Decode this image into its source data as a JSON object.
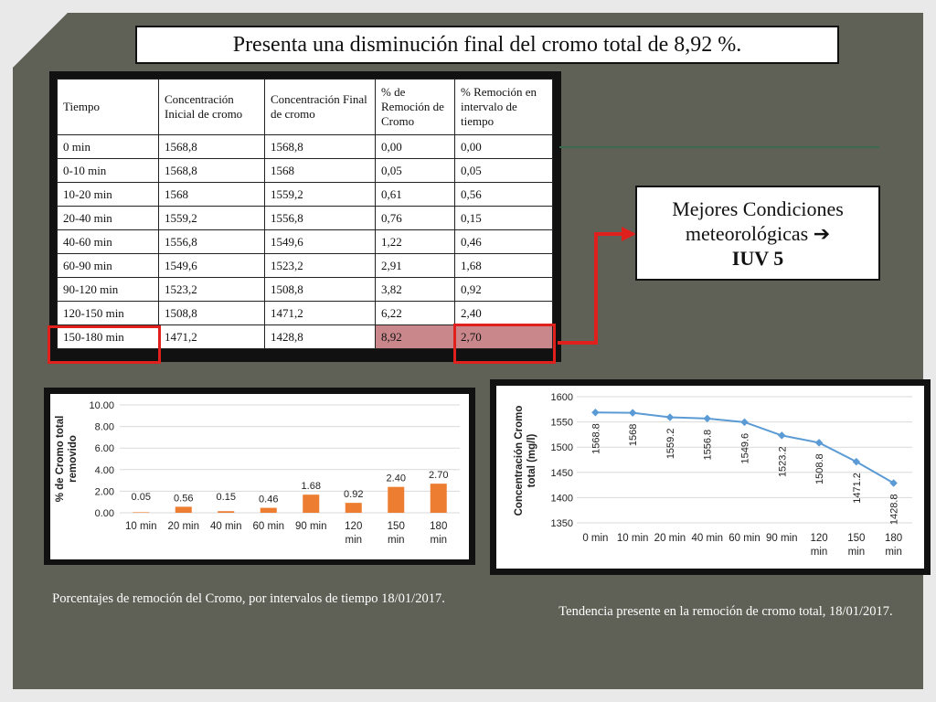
{
  "title": "Presenta una disminución final del cromo total de 8,92 %.",
  "table": {
    "headers": [
      "Tiempo",
      "Concentración Inicial de cromo",
      "Concentración Final de cromo",
      "% de Remoción de Cromo",
      "% Remoción en intervalo de tiempo"
    ],
    "rows": [
      [
        "0 min",
        "1568,8",
        "1568,8",
        "0,00",
        "0,00"
      ],
      [
        "0-10 min",
        "1568,8",
        "1568",
        "0,05",
        "0,05"
      ],
      [
        "10-20 min",
        "1568",
        "1559,2",
        "0,61",
        "0,56"
      ],
      [
        "20-40 min",
        "1559,2",
        "1556,8",
        "0,76",
        "0,15"
      ],
      [
        "40-60 min",
        "1556,8",
        "1549,6",
        "1,22",
        "0,46"
      ],
      [
        "60-90 min",
        "1549,6",
        "1523,2",
        "2,91",
        "1,68"
      ],
      [
        "90-120 min",
        "1523,2",
        "1508,8",
        "3,82",
        "0,92"
      ],
      [
        "120-150 min",
        "1508,8",
        "1471,2",
        "6,22",
        "2,40"
      ],
      [
        "150-180 min",
        "1471,2",
        "1428,8",
        "8,92",
        "2,70"
      ]
    ]
  },
  "conditions": {
    "line1": "Mejores Condiciones",
    "line2": "meteorológicas ➔",
    "line3": "IUV 5"
  },
  "captions": {
    "bar": "Porcentajes de remoción del Cromo, por intervalos de tiempo 18/01/2017.",
    "line": "Tendencia presente en la remoción de cromo total, 18/01/2017."
  },
  "colors": {
    "background": "#5f6156",
    "highlight": "#c9878b",
    "red": "#e0201c",
    "bar": "#ed7d31",
    "line": "#5b9bd5"
  },
  "chart_data": [
    {
      "type": "bar",
      "ylabel": "% de Cromo total removido",
      "categories": [
        "10 min",
        "20 min",
        "40 min",
        "60 min",
        "90 min",
        "120 min",
        "150 min",
        "180 min"
      ],
      "values": [
        0.05,
        0.56,
        0.15,
        0.46,
        1.68,
        0.92,
        2.4,
        2.7
      ],
      "value_labels": [
        "0.05",
        "0.56",
        "0.15",
        "0.46",
        "1.68",
        "0.92",
        "2.40",
        "2.70"
      ],
      "ylim": [
        0,
        10
      ],
      "yticks": [
        "0.00",
        "2.00",
        "4.00",
        "6.00",
        "8.00",
        "10.00"
      ],
      "grid": true
    },
    {
      "type": "line",
      "ylabel": "Concentración Cromo total (mg/l)",
      "categories": [
        "0 min",
        "10 min",
        "20 min",
        "40 min",
        "60 min",
        "90 min",
        "120 min",
        "150 min",
        "180 min"
      ],
      "values": [
        1568.8,
        1568,
        1559.2,
        1556.8,
        1549.6,
        1523.2,
        1508.8,
        1471.2,
        1428.8
      ],
      "value_labels": [
        "1568.8",
        "1568",
        "1559.2",
        "1556.8",
        "1549.6",
        "1523.2",
        "1508.8",
        "1471.2",
        "1428.8"
      ],
      "ylim": [
        1350,
        1600
      ],
      "yticks": [
        "1350",
        "1400",
        "1450",
        "1500",
        "1550",
        "1600"
      ],
      "grid": true
    }
  ]
}
